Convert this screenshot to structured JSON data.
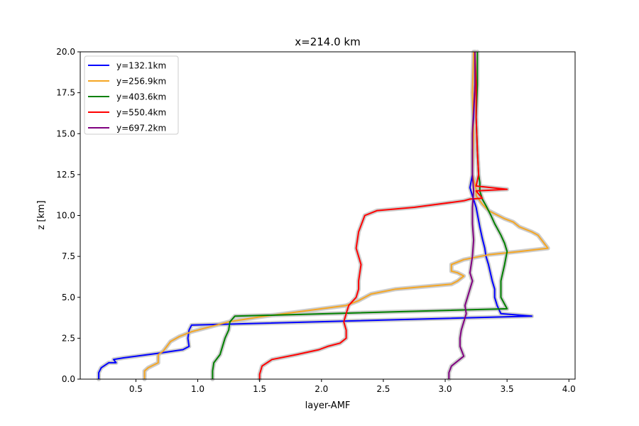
{
  "chart_data": {
    "type": "line",
    "title": "x=214.0 km",
    "xlabel": "layer-AMF",
    "ylabel": "z [km]",
    "xlim": [
      0.05,
      4.05
    ],
    "ylim": [
      0,
      20
    ],
    "xticks": [
      0.5,
      1.0,
      1.5,
      2.0,
      2.5,
      3.0,
      3.5,
      4.0
    ],
    "xtick_labels": [
      "0.5",
      "1.0",
      "1.5",
      "2.0",
      "2.5",
      "3.0",
      "3.5",
      "4.0"
    ],
    "yticks": [
      0,
      2.5,
      5,
      7.5,
      10,
      12.5,
      15,
      17.5,
      20
    ],
    "ytick_labels": [
      "0.0",
      "2.5",
      "5.0",
      "7.5",
      "10.0",
      "12.5",
      "15.0",
      "17.5",
      "20.0"
    ],
    "legend_position": "top-left",
    "grid": false,
    "uncertainty_band_color": "#c8c8c8",
    "series": [
      {
        "name": "y=132.1km",
        "color": "#0000ff",
        "x": [
          0.2,
          0.2,
          0.22,
          0.28,
          0.34,
          0.32,
          0.4,
          0.7,
          0.88,
          0.93,
          0.92,
          0.93,
          0.95,
          3.7,
          3.45,
          3.42,
          3.4,
          3.4,
          3.38,
          3.35,
          3.33,
          3.32,
          3.3,
          3.28,
          3.25,
          3.22,
          3.2,
          3.22,
          3.22,
          3.23,
          3.24,
          3.24
        ],
        "y": [
          0,
          0.4,
          0.7,
          1.0,
          1.0,
          1.2,
          1.3,
          1.6,
          1.8,
          2.0,
          2.5,
          3.0,
          3.3,
          3.85,
          4.0,
          4.5,
          5.0,
          5.5,
          6.0,
          7.0,
          7.5,
          8.0,
          8.6,
          9.3,
          10.5,
          11.2,
          11.7,
          12.5,
          14.0,
          16.0,
          18.0,
          20.0
        ]
      },
      {
        "name": "y=256.9km",
        "color": "#f5a623",
        "x": [
          0.57,
          0.57,
          0.6,
          0.68,
          0.68,
          0.72,
          0.75,
          0.78,
          0.85,
          0.95,
          1.1,
          1.25,
          1.5,
          1.8,
          2.0,
          2.2,
          2.3,
          2.4,
          2.6,
          3.05,
          3.1,
          3.15,
          3.1,
          3.05,
          3.05,
          3.15,
          3.35,
          3.6,
          3.83,
          3.78,
          3.75,
          3.7,
          3.6,
          3.55,
          3.48,
          3.35,
          3.3,
          3.25,
          3.25,
          3.22,
          3.23,
          3.22,
          3.23
        ],
        "y": [
          0,
          0.5,
          0.7,
          1.0,
          1.5,
          1.7,
          2.0,
          2.3,
          2.6,
          2.9,
          3.2,
          3.5,
          3.8,
          4.1,
          4.3,
          4.5,
          4.8,
          5.2,
          5.5,
          5.8,
          6.0,
          6.3,
          6.5,
          6.6,
          7.0,
          7.3,
          7.6,
          7.8,
          8.0,
          8.5,
          8.8,
          9.0,
          9.3,
          9.6,
          9.8,
          10.3,
          10.7,
          11.2,
          11.6,
          12.5,
          15.0,
          17.5,
          20.0
        ]
      },
      {
        "name": "y=403.6km",
        "color": "#008000",
        "x": [
          1.12,
          1.12,
          1.13,
          1.18,
          1.2,
          1.22,
          1.25,
          1.26,
          1.3,
          3.5,
          3.45,
          3.45,
          3.48,
          3.5,
          3.48,
          3.45,
          3.4,
          3.37,
          3.33,
          3.3,
          3.28,
          3.28,
          3.27,
          3.26,
          3.25,
          3.26,
          3.26
        ],
        "y": [
          0,
          0.5,
          1.0,
          1.5,
          2.0,
          2.5,
          3.0,
          3.5,
          3.85,
          4.3,
          5.0,
          6.0,
          7.0,
          7.8,
          8.3,
          8.8,
          9.5,
          10.0,
          10.6,
          11.0,
          11.5,
          12.0,
          12.5,
          14.0,
          16.0,
          18.0,
          20.0
        ]
      },
      {
        "name": "y=550.4km",
        "color": "#ff0000",
        "x": [
          1.5,
          1.5,
          1.52,
          1.6,
          1.8,
          1.98,
          2.05,
          2.15,
          2.2,
          2.2,
          2.18,
          2.2,
          2.22,
          2.28,
          2.3,
          2.3,
          2.32,
          2.28,
          2.3,
          2.35,
          2.45,
          2.75,
          3.15,
          3.2,
          3.3,
          3.25,
          3.5,
          3.25,
          3.27,
          3.26,
          3.25,
          3.25,
          3.24
        ],
        "y": [
          0,
          0.3,
          0.8,
          1.2,
          1.5,
          1.8,
          2.0,
          2.2,
          2.5,
          3.0,
          3.5,
          4.0,
          4.5,
          5.0,
          5.5,
          6.0,
          7.0,
          8.0,
          9.0,
          10.0,
          10.3,
          10.5,
          10.9,
          11.0,
          11.05,
          11.5,
          11.6,
          11.8,
          12.5,
          14.0,
          16.0,
          18.0,
          20.0
        ]
      },
      {
        "name": "y=697.2km",
        "color": "#800080",
        "x": [
          3.03,
          3.03,
          3.05,
          3.1,
          3.15,
          3.12,
          3.12,
          3.13,
          3.15,
          3.17,
          3.16,
          3.18,
          3.2,
          3.22,
          3.2,
          3.22,
          3.23,
          3.22,
          3.22,
          3.23,
          3.22,
          3.22,
          3.22,
          3.23,
          3.24,
          3.24
        ],
        "y": [
          0,
          0.4,
          0.8,
          1.1,
          1.4,
          2.0,
          2.5,
          3.0,
          3.5,
          4.0,
          4.5,
          5.0,
          5.5,
          6.0,
          6.5,
          7.5,
          8.5,
          9.5,
          10.5,
          11.5,
          12.5,
          14.0,
          15.0,
          16.5,
          18.0,
          20.0
        ]
      }
    ]
  }
}
